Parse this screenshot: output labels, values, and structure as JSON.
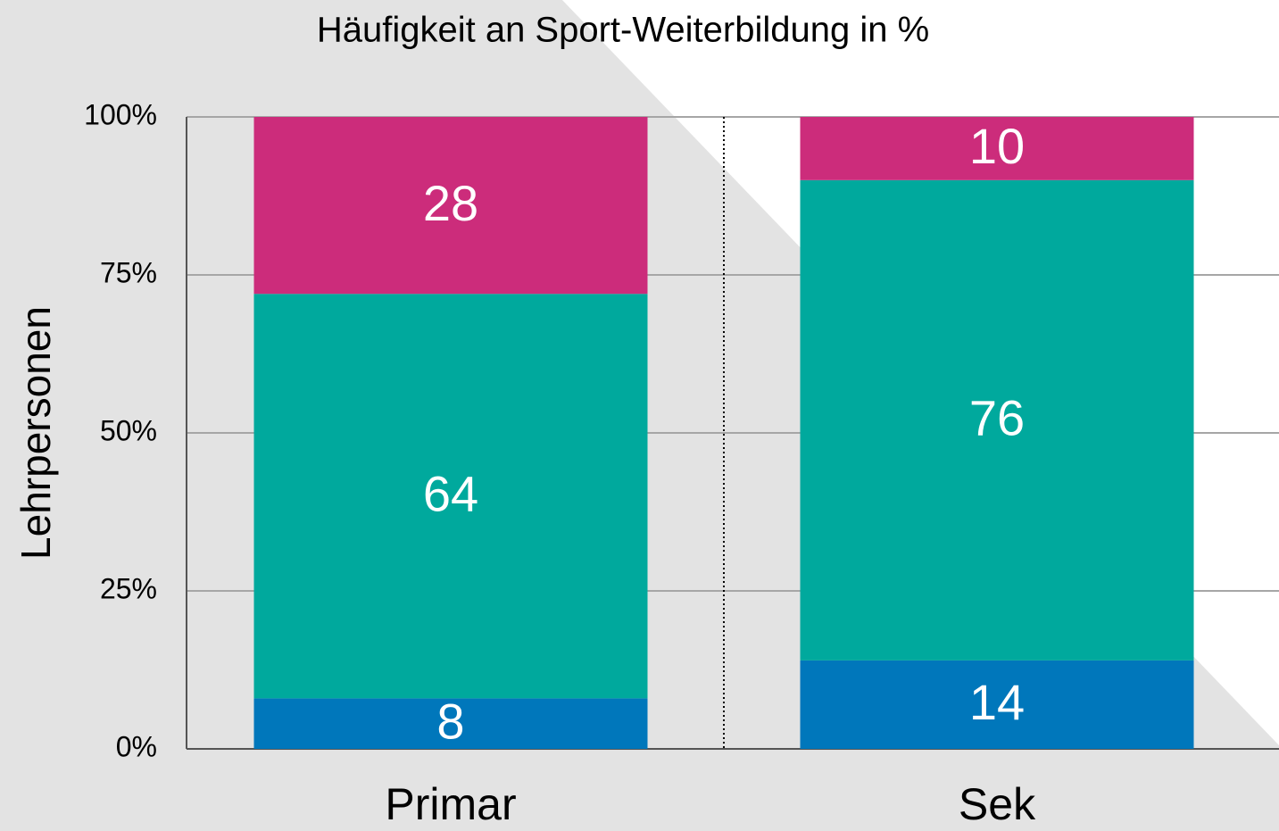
{
  "chart_data": {
    "type": "stacked_bar",
    "title": "Häufigkeit an Sport-Weiterbildung in %",
    "y_label": "Lehrpersonen",
    "categories": [
      "Primar",
      "Sek"
    ],
    "series": [
      {
        "color": "#0077bb",
        "values": [
          8,
          14
        ]
      },
      {
        "color": "#00a99d",
        "values": [
          64,
          76
        ]
      },
      {
        "color": "#cc2c7b",
        "values": [
          28,
          10
        ]
      }
    ],
    "ylim": [
      0,
      100
    ],
    "yticks": [
      {
        "value": 0,
        "label": "0%"
      },
      {
        "value": 25,
        "label": "25%"
      },
      {
        "value": 50,
        "label": "50%"
      },
      {
        "value": 75,
        "label": "75%"
      },
      {
        "value": 100,
        "label": "100%"
      }
    ],
    "grid": true
  }
}
